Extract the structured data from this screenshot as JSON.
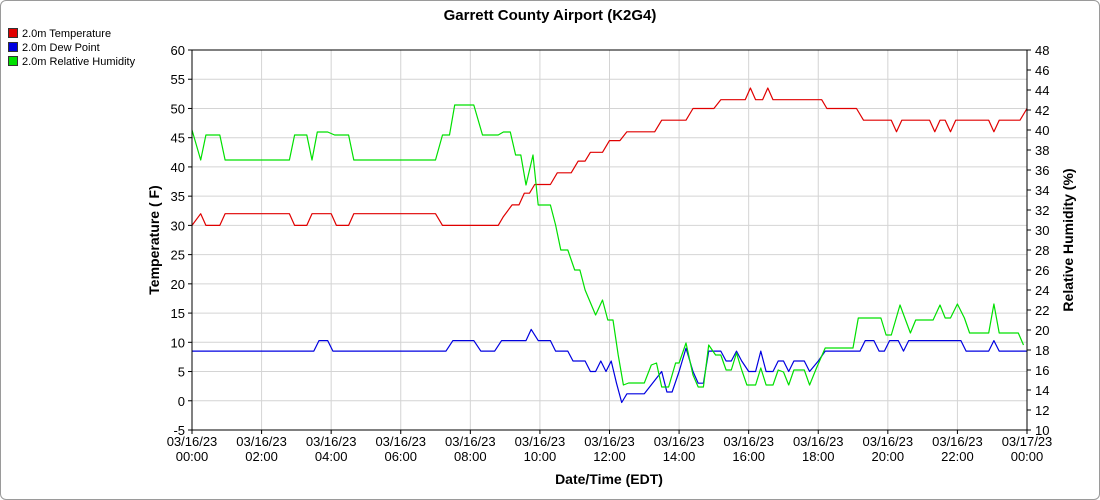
{
  "chart_data": {
    "type": "line",
    "title": "Garrett County Airport (K2G4)",
    "xlabel": "Date/Time (EDT)",
    "ylabel_left": "Temperature ( F)",
    "ylabel_right": "Relative Humidity (%)",
    "ylim_left": [
      -5,
      60
    ],
    "ylim_right": [
      10,
      48
    ],
    "yticks_left": [
      -5,
      0,
      5,
      10,
      15,
      20,
      25,
      30,
      35,
      40,
      45,
      50,
      55,
      60
    ],
    "yticks_right": [
      10,
      12,
      14,
      16,
      18,
      20,
      22,
      24,
      26,
      28,
      30,
      32,
      34,
      36,
      38,
      40,
      42,
      44,
      46,
      48
    ],
    "xlim_hours": [
      0,
      24
    ],
    "xticks": [
      {
        "hour": 0,
        "date": "03/16/23",
        "time": "00:00"
      },
      {
        "hour": 2,
        "date": "03/16/23",
        "time": "02:00"
      },
      {
        "hour": 4,
        "date": "03/16/23",
        "time": "04:00"
      },
      {
        "hour": 6,
        "date": "03/16/23",
        "time": "06:00"
      },
      {
        "hour": 8,
        "date": "03/16/23",
        "time": "08:00"
      },
      {
        "hour": 10,
        "date": "03/16/23",
        "time": "10:00"
      },
      {
        "hour": 12,
        "date": "03/16/23",
        "time": "12:00"
      },
      {
        "hour": 14,
        "date": "03/16/23",
        "time": "14:00"
      },
      {
        "hour": 16,
        "date": "03/16/23",
        "time": "16:00"
      },
      {
        "hour": 18,
        "date": "03/16/23",
        "time": "18:00"
      },
      {
        "hour": 20,
        "date": "03/16/23",
        "time": "20:00"
      },
      {
        "hour": 22,
        "date": "03/16/23",
        "time": "22:00"
      },
      {
        "hour": 24,
        "date": "03/17/23",
        "time": "00:00"
      }
    ],
    "grid": true,
    "legend_position": "top-left",
    "series": [
      {
        "name": "2.0m Temperature",
        "color": "#e00000",
        "axis": "left",
        "points": [
          [
            0,
            30
          ],
          [
            0.25,
            32
          ],
          [
            0.4,
            30
          ],
          [
            0.8,
            30
          ],
          [
            0.95,
            32
          ],
          [
            2.8,
            32
          ],
          [
            2.95,
            30
          ],
          [
            3.3,
            30
          ],
          [
            3.45,
            32
          ],
          [
            4,
            32
          ],
          [
            4.15,
            30
          ],
          [
            4.5,
            30
          ],
          [
            4.65,
            32
          ],
          [
            7,
            32
          ],
          [
            7.2,
            30
          ],
          [
            8,
            30
          ],
          [
            8.8,
            30
          ],
          [
            8.95,
            31.5
          ],
          [
            9.2,
            33.5
          ],
          [
            9.4,
            33.5
          ],
          [
            9.55,
            35.5
          ],
          [
            9.7,
            35.5
          ],
          [
            9.85,
            37
          ],
          [
            10.3,
            37
          ],
          [
            10.5,
            39
          ],
          [
            10.9,
            39
          ],
          [
            11.1,
            41
          ],
          [
            11.3,
            41
          ],
          [
            11.45,
            42.5
          ],
          [
            11.8,
            42.5
          ],
          [
            12,
            44.5
          ],
          [
            12.3,
            44.5
          ],
          [
            12.5,
            46
          ],
          [
            13.3,
            46
          ],
          [
            13.5,
            48
          ],
          [
            14.2,
            48
          ],
          [
            14.4,
            50
          ],
          [
            15,
            50
          ],
          [
            15.2,
            51.5
          ],
          [
            15.9,
            51.5
          ],
          [
            16.05,
            53.5
          ],
          [
            16.2,
            51.5
          ],
          [
            16.4,
            51.5
          ],
          [
            16.55,
            53.5
          ],
          [
            16.7,
            51.5
          ],
          [
            18.1,
            51.5
          ],
          [
            18.25,
            50
          ],
          [
            19.1,
            50
          ],
          [
            19.3,
            48
          ],
          [
            20.1,
            48
          ],
          [
            20.25,
            46
          ],
          [
            20.4,
            48
          ],
          [
            21.2,
            48
          ],
          [
            21.35,
            46
          ],
          [
            21.5,
            48
          ],
          [
            21.65,
            48
          ],
          [
            21.8,
            46
          ],
          [
            21.95,
            48
          ],
          [
            22.9,
            48
          ],
          [
            23.05,
            46
          ],
          [
            23.2,
            48
          ],
          [
            23.8,
            48
          ],
          [
            24,
            50
          ]
        ]
      },
      {
        "name": "2.0m Dew Point",
        "color": "#0000e0",
        "axis": "left",
        "points": [
          [
            0,
            8.5
          ],
          [
            3.5,
            8.5
          ],
          [
            3.65,
            10.3
          ],
          [
            3.9,
            10.3
          ],
          [
            4.05,
            8.5
          ],
          [
            7.3,
            8.5
          ],
          [
            7.5,
            10.3
          ],
          [
            8.1,
            10.3
          ],
          [
            8.3,
            8.5
          ],
          [
            8.7,
            8.5
          ],
          [
            8.9,
            10.3
          ],
          [
            9.6,
            10.3
          ],
          [
            9.75,
            12.2
          ],
          [
            9.95,
            10.3
          ],
          [
            10.3,
            10.3
          ],
          [
            10.45,
            8.5
          ],
          [
            10.8,
            8.5
          ],
          [
            10.95,
            6.8
          ],
          [
            11.3,
            6.8
          ],
          [
            11.45,
            5
          ],
          [
            11.6,
            5
          ],
          [
            11.75,
            6.8
          ],
          [
            11.9,
            5
          ],
          [
            12.05,
            6.8
          ],
          [
            12.2,
            3
          ],
          [
            12.35,
            -0.3
          ],
          [
            12.5,
            1.2
          ],
          [
            13,
            1.2
          ],
          [
            13.5,
            5
          ],
          [
            13.65,
            1.5
          ],
          [
            13.8,
            1.5
          ],
          [
            14,
            5
          ],
          [
            14.2,
            9
          ],
          [
            14.4,
            5
          ],
          [
            14.55,
            3
          ],
          [
            14.7,
            3
          ],
          [
            14.85,
            8.5
          ],
          [
            15.2,
            8.5
          ],
          [
            15.35,
            6.8
          ],
          [
            15.5,
            6.8
          ],
          [
            15.65,
            8.5
          ],
          [
            15.8,
            6.8
          ],
          [
            16,
            5
          ],
          [
            16.2,
            5
          ],
          [
            16.35,
            8.5
          ],
          [
            16.5,
            5
          ],
          [
            16.7,
            5
          ],
          [
            16.85,
            6.8
          ],
          [
            17,
            6.8
          ],
          [
            17.15,
            5
          ],
          [
            17.3,
            6.8
          ],
          [
            17.6,
            6.8
          ],
          [
            17.75,
            5
          ],
          [
            18,
            6.8
          ],
          [
            18.2,
            8.5
          ],
          [
            19.2,
            8.5
          ],
          [
            19.35,
            10.3
          ],
          [
            19.6,
            10.3
          ],
          [
            19.75,
            8.5
          ],
          [
            19.9,
            8.5
          ],
          [
            20.05,
            10.3
          ],
          [
            20.3,
            10.3
          ],
          [
            20.45,
            8.5
          ],
          [
            20.6,
            10.3
          ],
          [
            22.1,
            10.3
          ],
          [
            22.25,
            8.5
          ],
          [
            22.9,
            8.5
          ],
          [
            23.05,
            10.3
          ],
          [
            23.2,
            8.5
          ],
          [
            24,
            8.5
          ]
        ]
      },
      {
        "name": "2.0m Relative Humidity",
        "color": "#00e000",
        "axis": "right",
        "points": [
          [
            0,
            40
          ],
          [
            0.25,
            37
          ],
          [
            0.4,
            39.5
          ],
          [
            0.8,
            39.5
          ],
          [
            0.95,
            37
          ],
          [
            2.8,
            37
          ],
          [
            2.95,
            39.5
          ],
          [
            3.3,
            39.5
          ],
          [
            3.45,
            37
          ],
          [
            3.6,
            39.8
          ],
          [
            3.9,
            39.8
          ],
          [
            4.1,
            39.5
          ],
          [
            4.5,
            39.5
          ],
          [
            4.65,
            37
          ],
          [
            7,
            37
          ],
          [
            7.2,
            39.5
          ],
          [
            7.4,
            39.5
          ],
          [
            7.55,
            42.5
          ],
          [
            8.1,
            42.5
          ],
          [
            8.35,
            39.5
          ],
          [
            8.8,
            39.5
          ],
          [
            8.95,
            39.8
          ],
          [
            9.15,
            39.8
          ],
          [
            9.3,
            37.5
          ],
          [
            9.45,
            37.5
          ],
          [
            9.6,
            34.5
          ],
          [
            9.8,
            37.5
          ],
          [
            9.95,
            32.5
          ],
          [
            10.3,
            32.5
          ],
          [
            10.45,
            30.5
          ],
          [
            10.6,
            28
          ],
          [
            10.8,
            28
          ],
          [
            11,
            26
          ],
          [
            11.15,
            26
          ],
          [
            11.3,
            24
          ],
          [
            11.6,
            21.5
          ],
          [
            11.8,
            23
          ],
          [
            11.95,
            21
          ],
          [
            12.1,
            21
          ],
          [
            12.25,
            17.5
          ],
          [
            12.4,
            14.5
          ],
          [
            12.55,
            14.7
          ],
          [
            13,
            14.7
          ],
          [
            13.2,
            16.5
          ],
          [
            13.35,
            16.7
          ],
          [
            13.5,
            14.3
          ],
          [
            13.7,
            14.3
          ],
          [
            13.9,
            16.7
          ],
          [
            14,
            16.7
          ],
          [
            14.2,
            18.7
          ],
          [
            14.4,
            15.5
          ],
          [
            14.55,
            14.3
          ],
          [
            14.7,
            14.3
          ],
          [
            14.85,
            18.5
          ],
          [
            15.05,
            17.5
          ],
          [
            15.2,
            17.5
          ],
          [
            15.35,
            16
          ],
          [
            15.5,
            16
          ],
          [
            15.65,
            17.7
          ],
          [
            15.8,
            16
          ],
          [
            15.95,
            14.5
          ],
          [
            16.2,
            14.5
          ],
          [
            16.35,
            16.2
          ],
          [
            16.5,
            14.5
          ],
          [
            16.7,
            14.5
          ],
          [
            16.85,
            16
          ],
          [
            17,
            15.8
          ],
          [
            17.15,
            14.5
          ],
          [
            17.3,
            16
          ],
          [
            17.6,
            16
          ],
          [
            17.75,
            14.5
          ],
          [
            17.95,
            16.2
          ],
          [
            18.2,
            18.2
          ],
          [
            19,
            18.2
          ],
          [
            19.15,
            21.2
          ],
          [
            19.8,
            21.2
          ],
          [
            19.95,
            19.5
          ],
          [
            20.1,
            19.5
          ],
          [
            20.35,
            22.5
          ],
          [
            20.65,
            19.7
          ],
          [
            20.8,
            21
          ],
          [
            21.3,
            21
          ],
          [
            21.5,
            22.5
          ],
          [
            21.65,
            21.2
          ],
          [
            21.8,
            21.2
          ],
          [
            22,
            22.6
          ],
          [
            22.2,
            21.2
          ],
          [
            22.35,
            19.7
          ],
          [
            22.9,
            19.7
          ],
          [
            23.05,
            22.6
          ],
          [
            23.2,
            19.7
          ],
          [
            23.75,
            19.7
          ],
          [
            23.9,
            18.5
          ]
        ]
      }
    ]
  }
}
